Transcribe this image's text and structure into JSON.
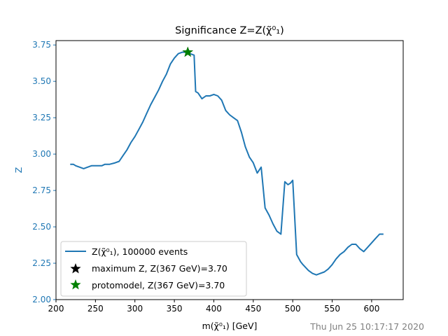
{
  "chart_data": {
    "type": "line",
    "title": "Significance Z=Z(χ̃⁰₁)",
    "xlabel": "m(χ̃⁰₁) [GeV]",
    "ylabel": "Z",
    "xlim": [
      200,
      640
    ],
    "ylim": [
      2.0,
      3.78
    ],
    "xticks": [
      "200",
      "250",
      "300",
      "350",
      "400",
      "450",
      "500",
      "550",
      "600"
    ],
    "yticks": [
      "2.00",
      "2.25",
      "2.50",
      "2.75",
      "3.00",
      "3.25",
      "3.50",
      "3.75"
    ],
    "grid": false,
    "legend_position": "lower-left",
    "colors": {
      "line": "#1f77b4",
      "max_marker": "#000000",
      "proto_marker": "#008000",
      "ylabel": "#1f77b4",
      "stamp": "#808080"
    },
    "series": [
      {
        "name": "Z(χ̃⁰₁), 100000 events",
        "x": [
          218,
          222,
          225,
          230,
          235,
          240,
          245,
          250,
          255,
          258,
          262,
          268,
          275,
          280,
          285,
          290,
          295,
          300,
          305,
          310,
          315,
          320,
          325,
          330,
          335,
          340,
          345,
          350,
          355,
          360,
          365,
          367,
          370,
          375,
          377,
          380,
          385,
          390,
          395,
          400,
          405,
          410,
          415,
          420,
          425,
          430,
          435,
          440,
          445,
          450,
          455,
          460,
          465,
          470,
          475,
          480,
          485,
          490,
          494,
          497,
          500,
          505,
          510,
          513,
          520,
          525,
          530,
          535,
          540,
          545,
          550,
          555,
          560,
          565,
          570,
          575,
          580,
          585,
          590,
          595,
          600,
          605,
          610,
          615
        ],
        "y": [
          2.93,
          2.93,
          2.92,
          2.91,
          2.9,
          2.91,
          2.92,
          2.92,
          2.92,
          2.92,
          2.93,
          2.93,
          2.94,
          2.95,
          2.99,
          3.03,
          3.08,
          3.12,
          3.17,
          3.22,
          3.28,
          3.34,
          3.39,
          3.44,
          3.5,
          3.55,
          3.62,
          3.66,
          3.69,
          3.7,
          3.7,
          3.7,
          3.69,
          3.68,
          3.43,
          3.42,
          3.38,
          3.4,
          3.4,
          3.41,
          3.4,
          3.37,
          3.3,
          3.27,
          3.25,
          3.23,
          3.15,
          3.05,
          2.98,
          2.94,
          2.87,
          2.91,
          2.63,
          2.58,
          2.52,
          2.47,
          2.45,
          2.81,
          2.79,
          2.8,
          2.82,
          2.31,
          2.26,
          2.24,
          2.2,
          2.18,
          2.17,
          2.18,
          2.19,
          2.21,
          2.24,
          2.28,
          2.31,
          2.33,
          2.36,
          2.38,
          2.38,
          2.35,
          2.33,
          2.36,
          2.39,
          2.42,
          2.45,
          2.45
        ]
      },
      {
        "name": "maximum Z, Z(367 GeV)=3.70",
        "marker": "star",
        "color": "#000000",
        "x": 367,
        "y": 3.7
      },
      {
        "name": "protomodel, Z(367 GeV)=3.70",
        "marker": "star",
        "color": "#008000",
        "x": 367,
        "y": 3.7
      }
    ],
    "timestamp": "Thu Jun 25 10:17:17 2020"
  }
}
